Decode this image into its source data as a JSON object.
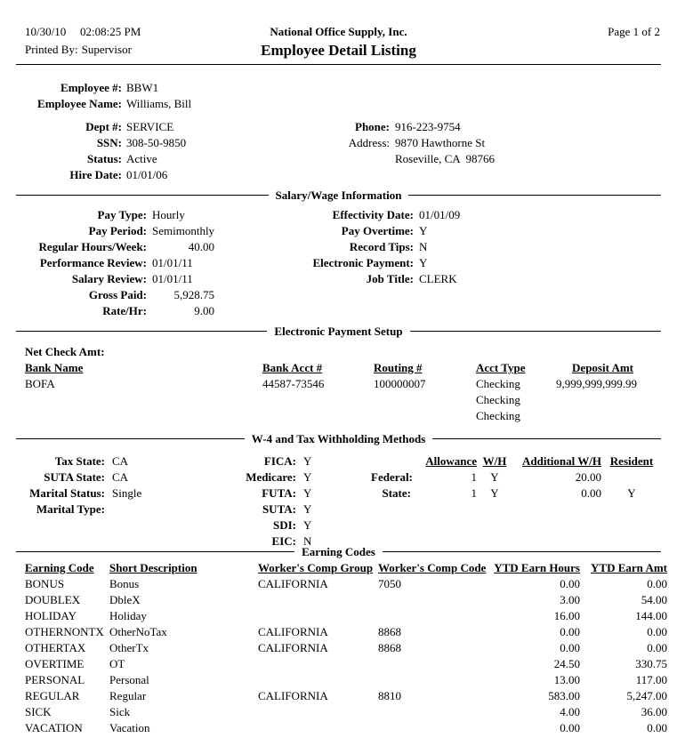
{
  "header": {
    "date": "10/30/10",
    "time": "02:08:25 PM",
    "printed_by_label": "Printed By:",
    "printed_by": "Supervisor",
    "company": "National Office Supply, Inc.",
    "title": "Employee Detail Listing",
    "page_label": "Page 1 of 2"
  },
  "employee": {
    "top_rows": [
      {
        "label": "Employee #:",
        "value": "BBW1"
      },
      {
        "label": "Employee Name:",
        "value": "Williams, Bill"
      }
    ],
    "left_rows": [
      {
        "label": "Dept #:",
        "value": "SERVICE"
      },
      {
        "label": "SSN:",
        "value": "308-50-9850"
      },
      {
        "label": "Status:",
        "value": "Active"
      },
      {
        "label": "Hire Date:",
        "value": "01/01/06"
      }
    ],
    "right_rows": [
      {
        "label": "Phone:",
        "value": "916-223-9754",
        "bold": true
      },
      {
        "label": "Address:",
        "value": "9870 Hawthorne St",
        "bold": false
      },
      {
        "label": "",
        "value": "Roseville, CA  98766",
        "bold": false
      }
    ]
  },
  "salary": {
    "title": "Salary/Wage Information",
    "left_rows": [
      {
        "label": "Pay Type:",
        "value": "Hourly"
      },
      {
        "label": "Pay Period:",
        "value": "Semimonthly"
      },
      {
        "label": "Regular Hours/Week:",
        "value": "40.00",
        "numeric": true
      },
      {
        "label": "Performance Review:",
        "value": "01/01/11"
      },
      {
        "label": "Salary Review:",
        "value": "01/01/11"
      },
      {
        "label": "Gross Paid:",
        "value": "5,928.75",
        "numeric": true
      },
      {
        "label": "Rate/Hr:",
        "value": "9.00",
        "numeric": true
      }
    ],
    "right_rows": [
      {
        "label": "Effectivity Date:",
        "value": "01/01/09"
      },
      {
        "label": "Pay Overtime:",
        "value": "Y"
      },
      {
        "label": "Record Tips:",
        "value": "N"
      },
      {
        "label": "Electronic Payment:",
        "value": "Y"
      },
      {
        "label": "Job Title:",
        "value": "CLERK"
      }
    ]
  },
  "electronic_payment": {
    "title": "Electronic Payment Setup",
    "net_check_label": "Net Check Amt:",
    "columns": [
      "Bank Name",
      "Bank Acct #",
      "Routing #",
      "Acct Type",
      "Deposit Amt"
    ],
    "rows": [
      [
        "BOFA",
        "44587-73546",
        "100000007",
        "Checking",
        "9,999,999,999.99"
      ],
      [
        "",
        "",
        "",
        "Checking",
        ""
      ],
      [
        "",
        "",
        "",
        "Checking",
        ""
      ]
    ]
  },
  "w4": {
    "title": "W-4 and Tax Withholding Methods",
    "left_rows": [
      {
        "label": "Tax State:",
        "value": "CA"
      },
      {
        "label": "SUTA State:",
        "value": "CA"
      },
      {
        "label": "Marital Status:",
        "value": "Single"
      },
      {
        "label": "Marital Type:",
        "value": ""
      }
    ],
    "middle_rows": [
      {
        "label": "FICA:",
        "value": "Y"
      },
      {
        "label": "Medicare:",
        "value": "Y"
      },
      {
        "label": "FUTA:",
        "value": "Y"
      },
      {
        "label": "SUTA:",
        "value": "Y"
      },
      {
        "label": "SDI:",
        "value": "Y"
      },
      {
        "label": "EIC:",
        "value": "N"
      }
    ],
    "table": {
      "columns": [
        "",
        "Allowance",
        "W/H",
        "Additional W/H",
        "Resident"
      ],
      "rows": [
        [
          "Federal:",
          "1",
          "Y",
          "20.00",
          ""
        ],
        [
          "State:",
          "1",
          "Y",
          "0.00",
          "Y"
        ]
      ]
    }
  },
  "earning_codes": {
    "title": "Earning Codes",
    "columns": [
      "Earning Code",
      "Short Description",
      "Worker's Comp Group",
      "Worker's Comp Code",
      "YTD Earn Hours",
      "YTD Earn Amt"
    ],
    "rows": [
      [
        "BONUS",
        "Bonus",
        "CALIFORNIA",
        "7050",
        "0.00",
        "0.00"
      ],
      [
        "DOUBLEX",
        "DbleX",
        "",
        "",
        "3.00",
        "54.00"
      ],
      [
        "HOLIDAY",
        "Holiday",
        "",
        "",
        "16.00",
        "144.00"
      ],
      [
        "OTHERNONTX",
        "OtherNoTax",
        "CALIFORNIA",
        "8868",
        "0.00",
        "0.00"
      ],
      [
        "OTHERTAX",
        "OtherTx",
        "CALIFORNIA",
        "8868",
        "0.00",
        "0.00"
      ],
      [
        "OVERTIME",
        "OT",
        "",
        "",
        "24.50",
        "330.75"
      ],
      [
        "PERSONAL",
        "Personal",
        "",
        "",
        "13.00",
        "117.00"
      ],
      [
        "REGULAR",
        "Regular",
        "CALIFORNIA",
        "8810",
        "583.00",
        "5,247.00"
      ],
      [
        "SICK",
        "Sick",
        "",
        "",
        "4.00",
        "36.00"
      ],
      [
        "VACATION",
        "Vacation",
        "",
        "",
        "0.00",
        "0.00"
      ]
    ]
  },
  "colors": {
    "text": "#000000",
    "background": "#ffffff"
  }
}
